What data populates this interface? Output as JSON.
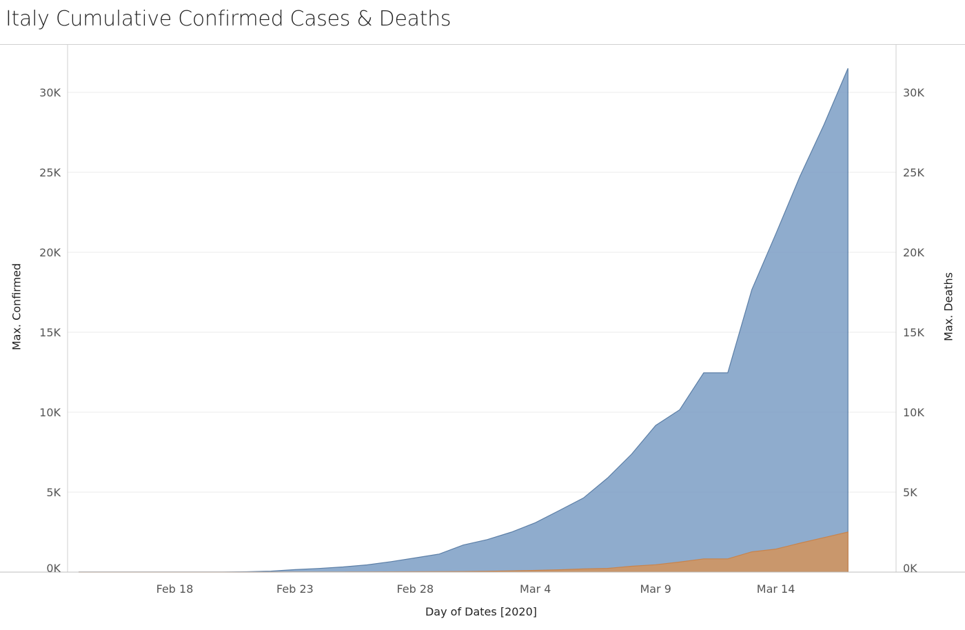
{
  "chart_data": {
    "type": "area",
    "title": "Italy Cumulative Confirmed Cases & Deaths",
    "xlabel": "Day of Dates [2020]",
    "ylabel_left": "Max. Confirmed",
    "ylabel_right": "Max. Deaths",
    "ylim": [
      0,
      33000
    ],
    "y_ticks": [
      0,
      5000,
      10000,
      15000,
      20000,
      25000,
      30000
    ],
    "y_tick_labels": [
      "0K",
      "5K",
      "10K",
      "15K",
      "20K",
      "25K",
      "30K"
    ],
    "x_ticks": [
      "2020-02-18",
      "2020-02-23",
      "2020-02-28",
      "2020-03-04",
      "2020-03-09",
      "2020-03-14"
    ],
    "x_tick_labels": [
      "Feb 18",
      "Feb 23",
      "Feb 28",
      "Mar 4",
      "Mar 9",
      "Mar 14"
    ],
    "x_range": [
      "2020-02-14",
      "2020-03-19"
    ],
    "grid": true,
    "x": [
      "2020-02-14",
      "2020-02-15",
      "2020-02-16",
      "2020-02-17",
      "2020-02-18",
      "2020-02-19",
      "2020-02-20",
      "2020-02-21",
      "2020-02-22",
      "2020-02-23",
      "2020-02-24",
      "2020-02-25",
      "2020-02-26",
      "2020-02-27",
      "2020-02-28",
      "2020-02-29",
      "2020-03-01",
      "2020-03-02",
      "2020-03-03",
      "2020-03-04",
      "2020-03-05",
      "2020-03-06",
      "2020-03-07",
      "2020-03-08",
      "2020-03-09",
      "2020-03-10",
      "2020-03-11",
      "2020-03-12",
      "2020-03-13",
      "2020-03-14",
      "2020-03-15",
      "2020-03-16",
      "2020-03-17"
    ],
    "series": [
      {
        "name": "Max. Confirmed",
        "color": "#7b9ec4",
        "line_color": "#5b7ea6",
        "values": [
          3,
          3,
          3,
          3,
          3,
          3,
          3,
          20,
          62,
          155,
          229,
          322,
          453,
          655,
          888,
          1128,
          1694,
          2036,
          2502,
          3089,
          3858,
          4636,
          5883,
          7375,
          9172,
          10149,
          12462,
          12462,
          17660,
          21157,
          24747,
          27980,
          31506
        ]
      },
      {
        "name": "Max. Deaths",
        "color": "#d4935b",
        "line_color": "#c9834a",
        "values": [
          0,
          0,
          0,
          0,
          0,
          0,
          0,
          1,
          2,
          3,
          7,
          10,
          12,
          17,
          21,
          29,
          34,
          52,
          79,
          107,
          148,
          197,
          233,
          366,
          463,
          631,
          827,
          827,
          1266,
          1441,
          1809,
          2158,
          2503
        ]
      }
    ]
  }
}
